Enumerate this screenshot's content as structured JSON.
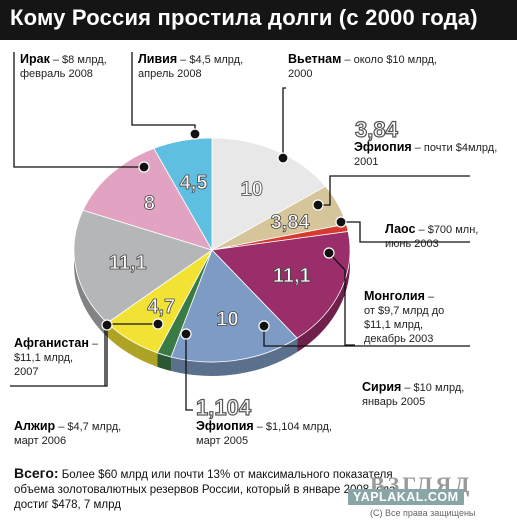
{
  "header": {
    "title": "Кому Россия простила долги (с 2000 года)"
  },
  "chart_data": {
    "type": "pie",
    "title": "Кому Россия простила долги (с 2000 года)",
    "unit": "$ млрд",
    "slices": [
      {
        "country": "Вьетнам",
        "value": 10,
        "label": "10",
        "color": "#e8e8e8"
      },
      {
        "country": "Эфиопия (2001)",
        "value": 3.84,
        "label": "3,84",
        "color": "#d6c49a"
      },
      {
        "country": "Лаос",
        "value": 0.7,
        "label": "",
        "color": "#d63a2e"
      },
      {
        "country": "Монголия",
        "value": 11.1,
        "label": "11,1",
        "color": "#9a2e6a"
      },
      {
        "country": "Сирия",
        "value": 10,
        "label": "10",
        "color": "#7d9bc4"
      },
      {
        "country": "Эфиопия (2005)",
        "value": 1.104,
        "label": "",
        "color": "#3a7a45"
      },
      {
        "country": "Алжир",
        "value": 4.7,
        "label": "4,7",
        "color": "#f2e234"
      },
      {
        "country": "Афганистан",
        "value": 11.1,
        "label": "11,1",
        "color": "#b4b6b8"
      },
      {
        "country": "Ирак",
        "value": 8,
        "label": "8",
        "color": "#e1a3c1"
      },
      {
        "country": "Ливия",
        "value": 4.5,
        "label": "4,5",
        "color": "#5fbfe0"
      }
    ]
  },
  "outside_values": {
    "ethiopia_2001": "3,84",
    "ethiopia_2005": "1,104"
  },
  "labels": {
    "iraq": {
      "name": "Ирак",
      "l1": " – $8 млрд,",
      "l2": "февраль 2008"
    },
    "libya": {
      "name": "Ливия",
      "l1": " – $4,5 млрд,",
      "l2": "апрель 2008"
    },
    "vietnam": {
      "name": "Вьетнам",
      "l1": " – около $10 млрд,",
      "l2": "2000"
    },
    "ethiopia2001": {
      "name": "Эфиопия",
      "l1": " – почти $4млрд,",
      "l2": "2001"
    },
    "laos": {
      "name": "Лаос",
      "l1": " – $700 млн,",
      "l2": "июнь 2003"
    },
    "mongolia": {
      "name": "Монголия",
      "l1": " –",
      "l2": "от $9,7 млрд до",
      "l3": "$11,1 млрд,",
      "l4": "декабрь 2003"
    },
    "syria": {
      "name": "Сирия",
      "l1": " – $10 млрд,",
      "l2": "январь 2005"
    },
    "ethiopia2005": {
      "name": "Эфиопия",
      "l1": " – $1,104 млрд,",
      "l2": "март 2005"
    },
    "algeria": {
      "name": "Алжир",
      "l1": " – $4,7 млрд,",
      "l2": "март 2006"
    },
    "afghanistan": {
      "name": "Афганистан",
      "l1": " –",
      "l2": "$11,1 млрд,",
      "l3": "2007"
    }
  },
  "footer": {
    "total_label": "Всего:",
    "text": " Более $60 млрд или почти 13% от максимального показателя объема золотовалютных резервов России, который в январе 2008 года достиг $478, 7 млрд"
  },
  "watermarks": {
    "vzglyad": "ВЗГЛЯД",
    "yaplakal": "YAPLAKAL.COM",
    "rights": "(С) Все права защищены"
  }
}
